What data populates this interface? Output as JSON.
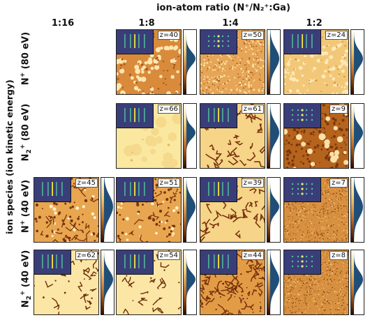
{
  "figure": {
    "title": "ion-atom ratio (N⁺/N₂⁺:Ga)",
    "side_title": "ion species (ion kinetic energy)",
    "columns": [
      "1:16",
      "1:8",
      "1:4",
      "1:2"
    ],
    "rows": [
      {
        "label_html": "N<sup>+</sup> (80 eV)"
      },
      {
        "label_html": "N<sub>2</sub><sup>+</sup> (80 eV)"
      },
      {
        "label_html": "N<sup>+</sup> (40 eV)"
      },
      {
        "label_html": "N<sub>2</sub><sup>+</sup> (40 eV)"
      }
    ],
    "panels": [
      {
        "row": 0,
        "col": 1,
        "z": "z=40",
        "texture": "grains"
      },
      {
        "row": 0,
        "col": 2,
        "z": "z=50",
        "texture": "fine"
      },
      {
        "row": 0,
        "col": 3,
        "z": "z=24",
        "texture": "smooth-bright"
      },
      {
        "row": 1,
        "col": 1,
        "z": "z=66",
        "texture": "flat"
      },
      {
        "row": 1,
        "col": 2,
        "z": "z=61",
        "texture": "worms"
      },
      {
        "row": 1,
        "col": 3,
        "z": "z=9",
        "texture": "rough-dark"
      },
      {
        "row": 2,
        "col": 0,
        "z": "z=45",
        "texture": "holes"
      },
      {
        "row": 2,
        "col": 1,
        "z": "z=51",
        "texture": "holes"
      },
      {
        "row": 2,
        "col": 2,
        "z": "z=39",
        "texture": "worms"
      },
      {
        "row": 2,
        "col": 3,
        "z": "z=7",
        "texture": "speckle"
      },
      {
        "row": 3,
        "col": 0,
        "z": "z=62",
        "texture": "sparse"
      },
      {
        "row": 3,
        "col": 1,
        "z": "z=54",
        "texture": "sparse"
      },
      {
        "row": 3,
        "col": 2,
        "z": "z=44",
        "texture": "dense-worms"
      },
      {
        "row": 3,
        "col": 3,
        "z": "z=8",
        "texture": "speckle"
      }
    ]
  },
  "colors": {
    "ink": "#111111",
    "histogram": "#1f4e79",
    "inset_bg": "#3a3e78",
    "streak": "#f5e63a"
  }
}
